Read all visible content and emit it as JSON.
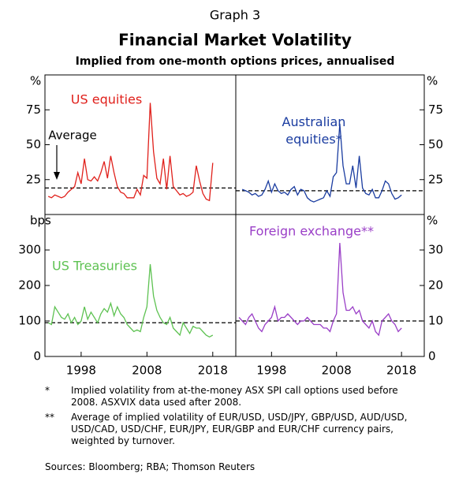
{
  "header": {
    "label": "Graph 3",
    "title": "Financial Market Volatility",
    "subtitle": "Implied from one-month options prices, annualised"
  },
  "chart_data": [
    {
      "type": "line",
      "y_unit": "%",
      "annotation": "Average",
      "average": 19,
      "ylim": [
        0,
        100
      ],
      "yticks": [
        25,
        50,
        75
      ],
      "xlim": [
        1992.5,
        2021.5
      ],
      "x": [
        1993,
        1993.5,
        1994,
        1994.5,
        1995,
        1995.5,
        1996,
        1996.5,
        1997,
        1997.5,
        1998,
        1998.5,
        1999,
        1999.5,
        2000,
        2000.5,
        2001,
        2001.5,
        2002,
        2002.5,
        2003,
        2003.5,
        2004,
        2004.5,
        2005,
        2005.5,
        2006,
        2006.5,
        2007,
        2007.5,
        2008,
        2008.5,
        2009,
        2009.5,
        2010,
        2010.5,
        2011,
        2011.5,
        2012,
        2012.5,
        2013,
        2013.5,
        2014,
        2014.5,
        2015,
        2015.5,
        2016,
        2016.5,
        2017,
        2017.5,
        2018
      ],
      "series": [
        {
          "name": "US equities",
          "color": "#e0201b",
          "values": [
            13,
            12,
            14,
            13,
            12,
            13,
            16,
            18,
            20,
            30,
            22,
            40,
            25,
            24,
            27,
            24,
            30,
            38,
            26,
            42,
            30,
            20,
            16,
            15,
            12,
            12,
            12,
            18,
            14,
            28,
            26,
            80,
            45,
            26,
            22,
            40,
            18,
            42,
            20,
            17,
            14,
            15,
            13,
            14,
            16,
            35,
            24,
            15,
            11,
            10,
            37
          ]
        }
      ]
    },
    {
      "type": "line",
      "y_unit": "%",
      "average": 17,
      "ylim": [
        0,
        100
      ],
      "yticks": [
        25,
        50,
        75
      ],
      "xlim": [
        1992.5,
        2021.5
      ],
      "x": [
        1993,
        1993.5,
        1994,
        1994.5,
        1995,
        1995.5,
        1996,
        1996.5,
        1997,
        1997.5,
        1998,
        1998.5,
        1999,
        1999.5,
        2000,
        2000.5,
        2001,
        2001.5,
        2002,
        2002.5,
        2003,
        2003.5,
        2004,
        2004.5,
        2005,
        2005.5,
        2006,
        2006.5,
        2007,
        2007.5,
        2008,
        2008.5,
        2009,
        2009.5,
        2010,
        2010.5,
        2011,
        2011.5,
        2012,
        2012.5,
        2013,
        2013.5,
        2014,
        2014.5,
        2015,
        2015.5,
        2016,
        2016.5,
        2017,
        2017.5,
        2018
      ],
      "series": [
        {
          "name": "Australian equities*",
          "color": "#1a3ca0",
          "values": [
            null,
            18,
            17,
            16,
            14,
            15,
            13,
            14,
            18,
            24,
            16,
            22,
            17,
            15,
            16,
            14,
            18,
            20,
            14,
            18,
            17,
            12,
            10,
            9,
            10,
            11,
            12,
            17,
            13,
            27,
            30,
            65,
            35,
            22,
            22,
            35,
            19,
            42,
            19,
            15,
            14,
            18,
            12,
            12,
            17,
            24,
            22,
            15,
            11,
            12,
            14
          ]
        }
      ]
    },
    {
      "type": "line",
      "y_unit": "bps",
      "average": 95,
      "ylim": [
        0,
        400
      ],
      "yticks": [
        0,
        100,
        200,
        300
      ],
      "xlim": [
        1992.5,
        2021.5
      ],
      "xticks": [
        1998,
        2008,
        2018
      ],
      "x": [
        1993,
        1993.5,
        1994,
        1994.5,
        1995,
        1995.5,
        1996,
        1996.5,
        1997,
        1997.5,
        1998,
        1998.5,
        1999,
        1999.5,
        2000,
        2000.5,
        2001,
        2001.5,
        2002,
        2002.5,
        2003,
        2003.5,
        2004,
        2004.5,
        2005,
        2005.5,
        2006,
        2006.5,
        2007,
        2007.5,
        2008,
        2008.5,
        2009,
        2009.5,
        2010,
        2010.5,
        2011,
        2011.5,
        2012,
        2012.5,
        2013,
        2013.5,
        2014,
        2014.5,
        2015,
        2015.5,
        2016,
        2016.5,
        2017,
        2017.5,
        2018
      ],
      "series": [
        {
          "name": "US Treasuries",
          "color": "#5ec252",
          "values": [
            95,
            90,
            140,
            125,
            110,
            105,
            120,
            95,
            110,
            90,
            100,
            140,
            105,
            125,
            110,
            95,
            120,
            135,
            125,
            150,
            115,
            140,
            120,
            110,
            90,
            80,
            70,
            75,
            70,
            110,
            140,
            260,
            170,
            130,
            110,
            95,
            90,
            110,
            80,
            70,
            60,
            95,
            80,
            65,
            85,
            80,
            80,
            70,
            60,
            55,
            60
          ]
        }
      ]
    },
    {
      "type": "line",
      "y_unit": "%",
      "average": 10,
      "ylim": [
        0,
        40
      ],
      "yticks": [
        0,
        10,
        20,
        30
      ],
      "xlim": [
        1992.5,
        2021.5
      ],
      "xticks": [
        1998,
        2008,
        2018
      ],
      "x": [
        1993,
        1993.5,
        1994,
        1994.5,
        1995,
        1995.5,
        1996,
        1996.5,
        1997,
        1997.5,
        1998,
        1998.5,
        1999,
        1999.5,
        2000,
        2000.5,
        2001,
        2001.5,
        2002,
        2002.5,
        2003,
        2003.5,
        2004,
        2004.5,
        2005,
        2005.5,
        2006,
        2006.5,
        2007,
        2007.5,
        2008,
        2008.5,
        2009,
        2009.5,
        2010,
        2010.5,
        2011,
        2011.5,
        2012,
        2012.5,
        2013,
        2013.5,
        2014,
        2014.5,
        2015,
        2015.5,
        2016,
        2016.5,
        2017,
        2017.5,
        2018
      ],
      "series": [
        {
          "name": "Foreign exchange**",
          "color": "#9a3fc7",
          "values": [
            11,
            10,
            9,
            11,
            12,
            10,
            8,
            7,
            9,
            10,
            11,
            14,
            10,
            11,
            11,
            12,
            11,
            10,
            9,
            10,
            10,
            11,
            10,
            9,
            9,
            9,
            8,
            8,
            7,
            10,
            12,
            32,
            18,
            13,
            13,
            14,
            12,
            13,
            10,
            9,
            8,
            10,
            7,
            6,
            10,
            11,
            12,
            10,
            9,
            7,
            8
          ]
        }
      ]
    }
  ],
  "footnotes": [
    {
      "marker": "*",
      "text": "Implied volatility from at-the-money ASX SPI call options used before 2008. ASXVIX data used after 2008."
    },
    {
      "marker": "**",
      "text": "Average of implied volatility of EUR/USD, USD/JPY, GBP/USD, AUD/USD, USD/CAD, USD/CHF, EUR/JPY, EUR/GBP and EUR/CHF currency pairs, weighted by turnover."
    }
  ],
  "sources": "Sources:  Bloomberg; RBA; Thomson Reuters"
}
